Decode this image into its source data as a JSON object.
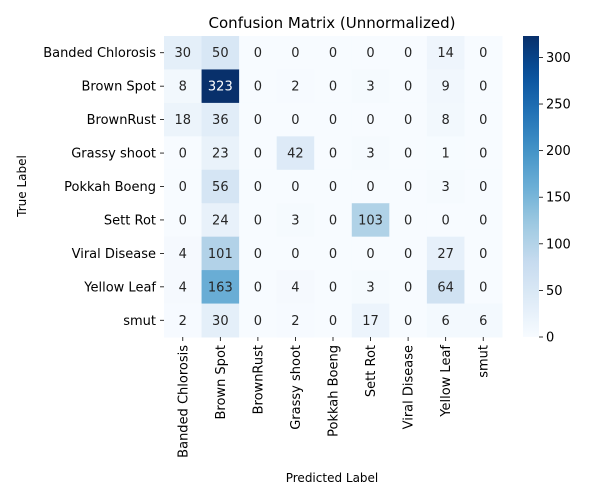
{
  "chart_data": {
    "type": "heatmap",
    "title": "Confusion Matrix (Unnormalized)",
    "xlabel": "Predicted Label",
    "ylabel": "True Label",
    "row_labels": [
      "Banded Chlorosis",
      "Brown Spot",
      "BrownRust",
      "Grassy shoot",
      "Pokkah Boeng",
      "Sett Rot",
      "Viral Disease",
      "Yellow Leaf",
      "smut"
    ],
    "col_labels": [
      "Banded Chlorosis",
      "Brown Spot",
      "BrownRust",
      "Grassy shoot",
      "Pokkah Boeng",
      "Sett Rot",
      "Viral Disease",
      "Yellow Leaf",
      "smut"
    ],
    "values": [
      [
        30,
        50,
        0,
        0,
        0,
        0,
        0,
        14,
        0
      ],
      [
        8,
        323,
        0,
        2,
        0,
        3,
        0,
        9,
        0
      ],
      [
        18,
        36,
        0,
        0,
        0,
        0,
        0,
        8,
        0
      ],
      [
        0,
        23,
        0,
        42,
        0,
        3,
        0,
        1,
        0
      ],
      [
        0,
        56,
        0,
        0,
        0,
        0,
        0,
        3,
        0
      ],
      [
        0,
        24,
        0,
        3,
        0,
        103,
        0,
        0,
        0
      ],
      [
        4,
        101,
        0,
        0,
        0,
        0,
        0,
        27,
        0
      ],
      [
        4,
        163,
        0,
        4,
        0,
        3,
        0,
        64,
        0
      ],
      [
        2,
        30,
        0,
        2,
        0,
        17,
        0,
        6,
        6
      ]
    ],
    "colormap": "Blues",
    "colorbar": {
      "min": 0,
      "max": 323,
      "ticks": [
        0,
        50,
        100,
        150,
        200,
        250,
        300
      ]
    }
  }
}
